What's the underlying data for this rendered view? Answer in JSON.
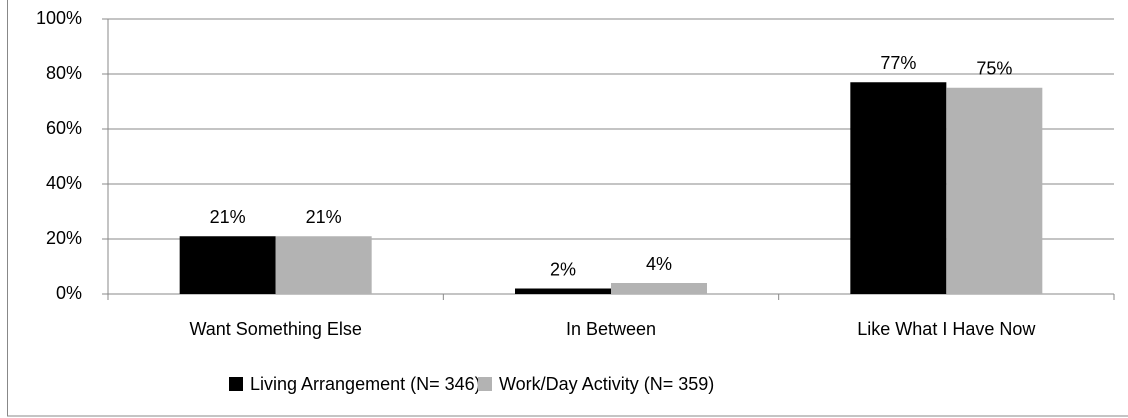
{
  "chart_data": {
    "type": "bar",
    "categories": [
      "Want Something Else",
      "In Between",
      "Like What I Have Now"
    ],
    "series": [
      {
        "name": "Living Arrangement (N= 346)",
        "color": "#000000",
        "values": [
          21,
          2,
          77
        ],
        "value_labels": [
          "21%",
          "2%",
          "77%"
        ]
      },
      {
        "name": "Work/Day Activity (N= 359)",
        "color": "#b3b3b3",
        "values": [
          21,
          4,
          75
        ],
        "value_labels": [
          "21%",
          "4%",
          "75%"
        ]
      }
    ],
    "ylim": [
      0,
      100
    ],
    "yticks": [
      {
        "value": 0,
        "label": "0%"
      },
      {
        "value": 20,
        "label": "20%"
      },
      {
        "value": 40,
        "label": "40%"
      },
      {
        "value": 60,
        "label": "60%"
      },
      {
        "value": 80,
        "label": "80%"
      },
      {
        "value": 100,
        "label": "100%"
      }
    ],
    "grid": true,
    "legend": "bottom"
  }
}
